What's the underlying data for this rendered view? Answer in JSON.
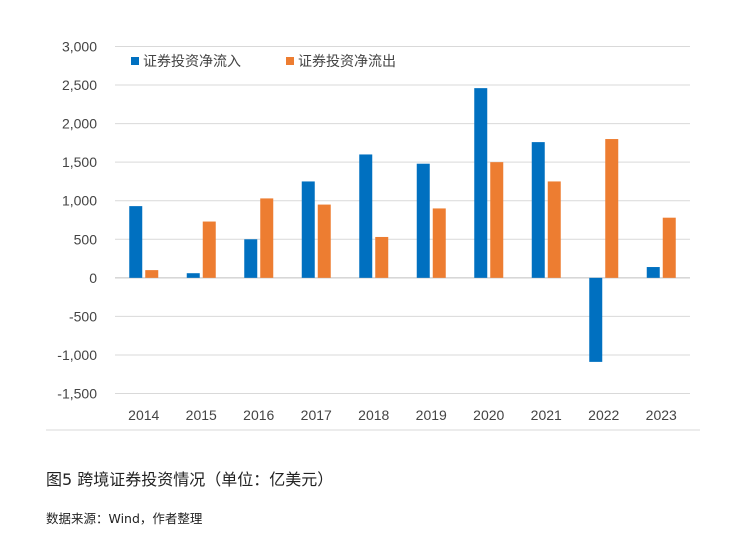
{
  "chart_data": {
    "type": "bar",
    "categories": [
      "2014",
      "2015",
      "2016",
      "2017",
      "2018",
      "2019",
      "2020",
      "2021",
      "2022",
      "2023"
    ],
    "series": [
      {
        "name": "证券投资净流入",
        "color": "#0070c0",
        "values": [
          930,
          60,
          500,
          1250,
          1600,
          1480,
          2460,
          1760,
          -1090,
          140
        ]
      },
      {
        "name": "证券投资净流出",
        "color": "#ed7d31",
        "values": [
          100,
          730,
          1030,
          950,
          530,
          900,
          1500,
          1250,
          1800,
          780
        ]
      }
    ],
    "ylim": [
      -1500,
      3000
    ],
    "yticks": [
      3000,
      2500,
      2000,
      1500,
      1000,
      500,
      0,
      -500,
      -1000,
      -1500
    ],
    "ytick_labels": [
      "3,000",
      "2,500",
      "2,000",
      "1,500",
      "1,000",
      "500",
      "0",
      "-500",
      "-1,000",
      "-1,500"
    ],
    "grid": true,
    "legend_position": "top-left"
  },
  "caption": "图5 跨境证券投资情况（单位：亿美元）",
  "source": "数据来源：Wind，作者整理"
}
